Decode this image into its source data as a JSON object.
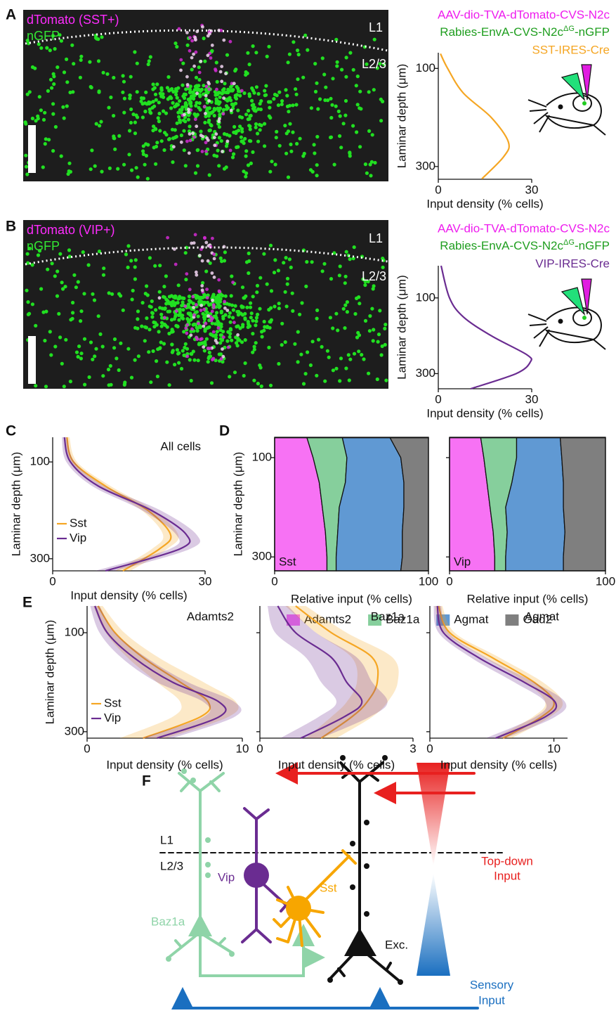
{
  "panel_labels": [
    "A",
    "B",
    "C",
    "D",
    "E",
    "F"
  ],
  "micrographs": [
    {
      "labels": [
        "dTomato (SST+)",
        "nGFP"
      ],
      "layers": [
        "L1",
        "L2/3"
      ],
      "constructs": [
        "AAV-dio-TVA-dTomato-CVS-N2c",
        [
          "Rabies-EnvA-CVS-N2c",
          "ΔG",
          "-nGFP"
        ],
        "SST-IRES-Cre"
      ]
    },
    {
      "labels": [
        "dTomato (VIP+)",
        "nGFP"
      ],
      "layers": [
        "L1",
        "L2/3"
      ],
      "constructs": [
        "AAV-dio-TVA-dTomato-CVS-N2c",
        [
          "Rabies-EnvA-CVS-N2c",
          "ΔG",
          "-nGFP"
        ],
        "VIP-IRES-Cre"
      ]
    }
  ],
  "chart_data": [
    {
      "type": "line",
      "ylabel": "Laminar depth (μm)",
      "xlabel": "Input density (% cells)",
      "y": [
        70,
        100,
        150,
        200,
        250,
        280,
        325
      ],
      "ylim": [
        68,
        326
      ],
      "yticks": [
        100,
        300
      ],
      "xlim": [
        0,
        30
      ],
      "xticks": [
        0,
        30
      ],
      "series": [
        {
          "color": "#f5a623",
          "values": [
            0.7,
            3,
            8,
            17,
            22.5,
            21,
            14
          ]
        }
      ]
    },
    {
      "type": "line",
      "ylabel": "Laminar depth (μm)",
      "xlabel": "Input density (% cells)",
      "y": [
        15,
        100,
        150,
        200,
        250,
        270,
        300,
        340
      ],
      "ylim": [
        15,
        340
      ],
      "yticks": [
        100,
        300
      ],
      "xlim": [
        0,
        30
      ],
      "xticks": [
        0,
        30
      ],
      "series": [
        {
          "color": "#6a2c91",
          "values": [
            0.9,
            3.6,
            8,
            17,
            28.4,
            29.5,
            25,
            10.4
          ]
        }
      ]
    },
    {
      "type": "line",
      "title": "All cells",
      "ylabel": "Laminar depth (μm)",
      "xlabel": "Input density (% cells)",
      "y": [
        49,
        100,
        150,
        200,
        250,
        280,
        325
      ],
      "ylim": [
        49,
        325
      ],
      "yticks": [
        100,
        300
      ],
      "xlim": [
        0,
        30
      ],
      "xticks": [
        0,
        30
      ],
      "series": [
        {
          "name": "Sst",
          "color": "#f5a623",
          "values": [
            2.8,
            4.1,
            10.4,
            18.7,
            23.2,
            21,
            13.8
          ],
          "errors": [
            0.5,
            0.7,
            1,
            1.2,
            1.5,
            1.5,
            1.5
          ]
        },
        {
          "name": "Vip",
          "color": "#6a2c91",
          "values": [
            2.3,
            3.5,
            9,
            19.4,
            26.3,
            25,
            10.4
          ],
          "errors": [
            0.5,
            0.8,
            1.2,
            1.8,
            2,
            2,
            2
          ]
        }
      ]
    },
    {
      "type": "stacked-area",
      "ylabel": "Laminar depth (μm)",
      "xlabel": "Relative input (% cells)",
      "y": [
        60,
        100,
        150,
        200,
        250,
        300,
        328
      ],
      "ylim": [
        59,
        328
      ],
      "yticks": [
        100,
        300
      ],
      "xlim": [
        0,
        100
      ],
      "xticks": [
        0,
        100
      ],
      "series": [
        {
          "name": "Adamts2",
          "color": "#f772f4"
        },
        {
          "name": "Baz1a",
          "color": "#86cf9c"
        },
        {
          "name": "Agmat",
          "color": "#6099d3"
        },
        {
          "name": "Gad2",
          "color": "#7f7f7f"
        }
      ],
      "subplots": [
        {
          "label": "Sst",
          "values": [
            [
              21,
              25,
              29,
              31,
              33,
              34,
              34
            ],
            [
              23,
              22,
              17,
              11,
              8,
              6,
              6
            ],
            [
              31,
              35,
              38,
              42,
              42,
              43,
              42
            ],
            [
              25,
              18,
              16,
              16,
              17,
              17,
              18
            ]
          ]
        },
        {
          "label": "Vip",
          "values": [
            [
              20,
              22,
              24,
              26,
              28,
              29,
              29
            ],
            [
              23,
              21,
              16,
              10,
              9,
              7,
              7
            ],
            [
              28,
              29,
              33,
              37,
              37,
              37,
              37
            ],
            [
              29,
              28,
              27,
              27,
              26,
              27,
              27
            ]
          ]
        }
      ]
    },
    {
      "type": "line",
      "ylabel": "Laminar depth (μm)",
      "y": [
        46,
        100,
        150,
        200,
        240,
        270,
        313
      ],
      "ylim": [
        46,
        313
      ],
      "yticks": [
        100,
        300
      ],
      "series": [
        {
          "name": "Sst",
          "color": "#f5a623"
        },
        {
          "name": "Vip",
          "color": "#6a2c91"
        }
      ],
      "subplots": [
        {
          "title": "Adamts2",
          "xlabel": "Input density (% cells)",
          "xlim": [
            0,
            10
          ],
          "xticks": [
            0,
            10
          ],
          "values": [
            [
              0.7,
              1.8,
              3.6,
              6,
              7.8,
              7.3,
              3.6
            ],
            [
              0.5,
              1.3,
              3,
              5.5,
              8.5,
              8.5,
              4.5
            ]
          ],
          "errors": [
            [
              0.3,
              0.6,
              1,
              1.5,
              1.8,
              1.8,
              1.5
            ],
            [
              0.3,
              0.5,
              0.8,
              1,
              1,
              1,
              1
            ]
          ]
        },
        {
          "title": "Baz1a",
          "xlabel": "Input density (% cells)",
          "xlim": [
            0,
            3
          ],
          "xticks": [
            0,
            3
          ],
          "values": [
            [
              0.7,
              1.4,
              2.2,
              2.3,
              2.1,
              1.8,
              1.2
            ],
            [
              0.35,
              0.7,
              1.4,
              1.7,
              2,
              1.65,
              0.8
            ]
          ],
          "errors": [
            [
              0.2,
              0.3,
              0.4,
              0.4,
              0.4,
              0.4,
              0.3
            ],
            [
              0.2,
              0.4,
              0.5,
              0.5,
              0.5,
              0.5,
              0.4
            ]
          ]
        },
        {
          "title": "Agmat",
          "xlabel": "Input density (% cells)",
          "xlim": [
            0,
            11.1
          ],
          "xticks": [
            0,
            10
          ],
          "values": [
            [
              0.7,
              1.6,
              5,
              8.4,
              10,
              9,
              5.9
            ],
            [
              0.6,
              1.1,
              3.9,
              7.6,
              10.1,
              9.3,
              5.3
            ]
          ],
          "errors": [
            [
              0.3,
              0.4,
              0.6,
              0.7,
              0.7,
              0.7,
              0.7
            ],
            [
              0.3,
              0.4,
              0.6,
              0.8,
              0.8,
              0.8,
              0.8
            ]
          ]
        }
      ]
    }
  ],
  "diagram": {
    "layers": [
      "L1",
      "L2/3"
    ],
    "cells": [
      "Vip",
      "Sst",
      "Baz1a",
      "Exc."
    ],
    "inputs": [
      [
        "Top-down",
        "Input"
      ],
      [
        "Sensory",
        "Input"
      ]
    ]
  }
}
